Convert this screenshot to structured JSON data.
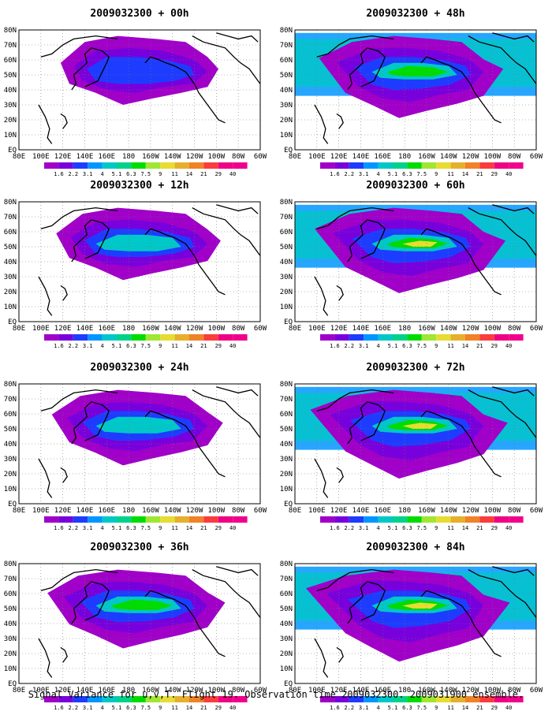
{
  "panels": [
    {
      "title": "2009032300 + 00h",
      "col": 0,
      "row": 0,
      "level": 0
    },
    {
      "title": "2009032300 + 48h",
      "col": 1,
      "row": 0,
      "level": 4
    },
    {
      "title": "2009032300 + 12h",
      "col": 0,
      "row": 1,
      "level": 1
    },
    {
      "title": "2009032300 + 60h",
      "col": 1,
      "row": 1,
      "level": 5
    },
    {
      "title": "2009032300 + 24h",
      "col": 0,
      "row": 2,
      "level": 2
    },
    {
      "title": "2009032300 + 72h",
      "col": 1,
      "row": 2,
      "level": 6
    },
    {
      "title": "2009032300 + 36h",
      "col": 0,
      "row": 3,
      "level": 3
    },
    {
      "title": "2009032300 + 84h",
      "col": 1,
      "row": 3,
      "level": 7
    }
  ],
  "axes": {
    "lon_ticks": [
      "80E",
      "100E",
      "120E",
      "140E",
      "160E",
      "180",
      "160W",
      "140W",
      "120W",
      "100W",
      "80W",
      "60W"
    ],
    "lat_ticks": [
      "80N",
      "70N",
      "60N",
      "50N",
      "40N",
      "30N",
      "20N",
      "10N",
      "EQ"
    ]
  },
  "colorbar": {
    "levels": [
      "1.6",
      "2.2",
      "3.1",
      "4",
      "5.1",
      "6.3",
      "7.5",
      "9",
      "11",
      "14",
      "21",
      "29",
      "40"
    ],
    "colors": [
      "#a000c8",
      "#7800dc",
      "#1e3cff",
      "#0096ff",
      "#00c8c8",
      "#00d28c",
      "#00dc00",
      "#a0e632",
      "#e6dc32",
      "#e6af2d",
      "#f08228",
      "#fa3c3c",
      "#f00082",
      "#f0008c"
    ]
  },
  "footer": "Signal Variance for u,v,T. Flight 19. Observation time 2009032300. 2009031900 ensemble."
}
